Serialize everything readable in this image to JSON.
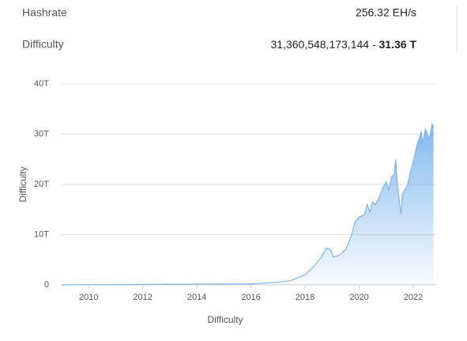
{
  "stats": {
    "rows": [
      {
        "label": "Hashrate",
        "value": "256.32 EH/s"
      },
      {
        "label": "Difficulty",
        "value": "31,360,548,173,144",
        "separator": "-",
        "short": "31.36 T"
      }
    ]
  },
  "chart_data": {
    "type": "area",
    "x_label": "Difficulty",
    "y_label": "Difficulty",
    "color": "#7cb5ec",
    "grid": true,
    "x": [
      2009,
      2016,
      2017,
      2017.5,
      2018,
      2018.3,
      2018.6,
      2018.8,
      2018.95,
      2019.05,
      2019.3,
      2019.5,
      2019.7,
      2019.85,
      2020.0,
      2020.2,
      2020.3,
      2020.4,
      2020.5,
      2020.6,
      2020.75,
      2020.85,
      2021.0,
      2021.1,
      2021.2,
      2021.3,
      2021.35,
      2021.4,
      2021.5,
      2021.55,
      2021.6,
      2021.8,
      2021.9,
      2022.0,
      2022.15,
      2022.3,
      2022.35,
      2022.45,
      2022.6,
      2022.7,
      2022.75
    ],
    "values": [
      0,
      0.2,
      0.5,
      0.9,
      2,
      3.5,
      5.5,
      7.3,
      7,
      5.5,
      6,
      7,
      9.5,
      12.5,
      13.5,
      14,
      16,
      14.5,
      16.5,
      16,
      17.5,
      19,
      20.5,
      19,
      21.5,
      22,
      25,
      21,
      16,
      14,
      18,
      20,
      22.5,
      24.5,
      28,
      30.5,
      28,
      31,
      29,
      32,
      31.4
    ],
    "xlim": [
      2009,
      2022.85
    ],
    "xticks": [
      2010,
      2012,
      2014,
      2016,
      2018,
      2020,
      2022
    ],
    "ylim": [
      0,
      40
    ],
    "yticks": [
      0,
      {
        "value": 10,
        "label": "10T"
      },
      {
        "value": 20,
        "label": "20T"
      },
      {
        "value": 30,
        "label": "30T"
      },
      {
        "value": 40,
        "label": "40T"
      }
    ]
  }
}
